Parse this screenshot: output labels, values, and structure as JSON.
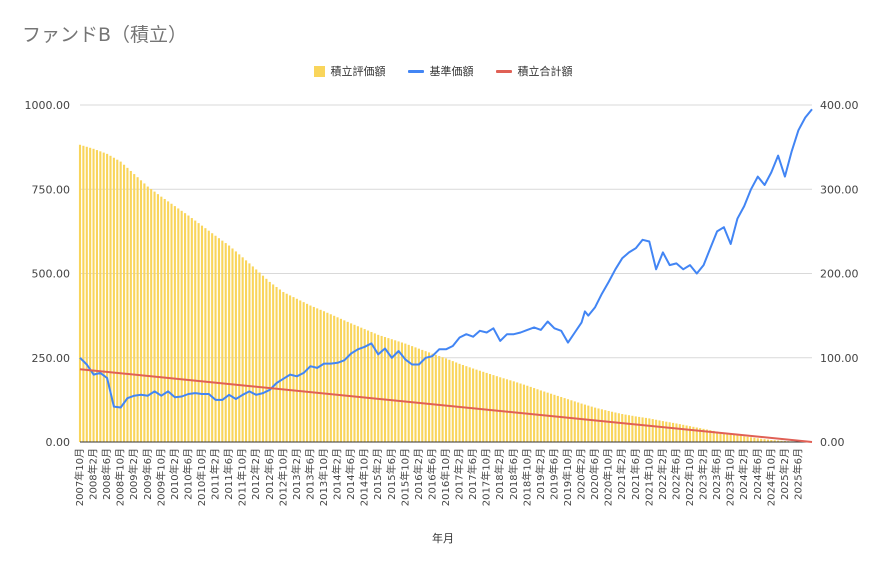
{
  "title": "ファンドB（積立）",
  "colors": {
    "bar": "#f9d55b",
    "base_price": "#4285f4",
    "cumulative": "#e06055",
    "grid": "#d9d9d9"
  },
  "legend": [
    {
      "label": "積立評価額",
      "kind": "bar",
      "color": "#f9d55b"
    },
    {
      "label": "基準価額",
      "kind": "line",
      "color": "#4285f4"
    },
    {
      "label": "積立合計額",
      "kind": "line",
      "color": "#e06055"
    }
  ],
  "chart_data": {
    "type": "bar",
    "title": "ファンドB（積立）",
    "xlabel": "年月",
    "ylabel_left": "",
    "ylabel_right": "",
    "y_left": {
      "lim": [
        0,
        1000
      ],
      "ticks": [
        "0.00",
        "250.00",
        "500.00",
        "750.00",
        "1000.00"
      ],
      "tick_values": [
        0,
        250,
        500,
        750,
        1000
      ]
    },
    "y_right": {
      "lim": [
        0,
        400
      ],
      "ticks": [
        "0.00",
        "100.00",
        "200.00",
        "300.00",
        "400.00"
      ],
      "tick_values": [
        0,
        100,
        200,
        300,
        400
      ]
    },
    "grid": true,
    "legend_position": "top",
    "x_range": [
      "2007-10",
      "2025-10"
    ],
    "x_tick_labels": [
      "2007年10月",
      "2008年2月",
      "2008年6月",
      "2008年10月",
      "2009年2月",
      "2009年6月",
      "2009年10月",
      "2010年2月",
      "2010年6月",
      "2010年10月",
      "2011年2月",
      "2011年6月",
      "2011年10月",
      "2012年2月",
      "2012年6月",
      "2012年10月",
      "2013年2月",
      "2013年6月",
      "2013年10月",
      "2014年2月",
      "2014年6月",
      "2014年10月",
      "2015年2月",
      "2015年6月",
      "2015年10月",
      "2016年2月",
      "2016年6月",
      "2016年10月",
      "2017年2月",
      "2017年6月",
      "2017年10月",
      "2018年2月",
      "2018年6月",
      "2018年10月",
      "2019年2月",
      "2019年6月",
      "2019年10月",
      "2020年2月",
      "2020年6月",
      "2020年10月",
      "2021年2月",
      "2021年6月",
      "2021年10月",
      "2022年2月",
      "2022年6月",
      "2022年10月",
      "2023年2月",
      "2023年6月",
      "2023年10月",
      "2024年2月",
      "2024年6月",
      "2024年10月",
      "2025年2月",
      "2025年6月"
    ],
    "series": [
      {
        "name": "積立評価額",
        "type": "bar",
        "axis": "left",
        "color": "#f9d55b",
        "x": [
          "2007-10",
          "2008-02",
          "2008-06",
          "2008-10",
          "2009-02",
          "2009-06",
          "2009-10",
          "2010-02",
          "2010-06",
          "2010-10",
          "2011-02",
          "2011-06",
          "2011-10",
          "2012-02",
          "2012-06",
          "2012-10",
          "2013-02",
          "2013-06",
          "2013-10",
          "2014-02",
          "2014-06",
          "2014-10",
          "2015-02",
          "2015-06",
          "2015-10",
          "2016-02",
          "2016-06",
          "2016-10",
          "2017-02",
          "2017-06",
          "2017-10",
          "2018-02",
          "2018-06",
          "2018-10",
          "2019-02",
          "2019-06",
          "2019-10",
          "2020-02",
          "2020-06",
          "2020-10",
          "2021-02",
          "2021-06",
          "2021-10",
          "2022-02",
          "2022-06",
          "2022-10",
          "2023-02",
          "2023-06",
          "2023-10",
          "2024-02",
          "2024-06",
          "2024-10",
          "2025-02",
          "2025-06",
          "2025-10"
        ],
        "values": [
          882,
          870,
          855,
          832,
          795,
          758,
          728,
          700,
          672,
          642,
          612,
          583,
          548,
          512,
          475,
          445,
          425,
          405,
          388,
          370,
          352,
          335,
          318,
          305,
          292,
          277,
          262,
          248,
          232,
          218,
          205,
          192,
          180,
          167,
          153,
          140,
          127,
          114,
          102,
          92,
          83,
          76,
          70,
          62,
          55,
          47,
          39,
          31,
          24,
          17,
          11,
          6,
          3,
          1,
          0
        ]
      },
      {
        "name": "基準価額",
        "type": "line",
        "axis": "right",
        "color": "#4285f4",
        "x": [
          "2007-10",
          "2007-12",
          "2008-02",
          "2008-04",
          "2008-06",
          "2008-08",
          "2008-10",
          "2008-12",
          "2009-02",
          "2009-04",
          "2009-06",
          "2009-08",
          "2009-10",
          "2009-12",
          "2010-02",
          "2010-04",
          "2010-06",
          "2010-08",
          "2010-10",
          "2010-12",
          "2011-02",
          "2011-04",
          "2011-06",
          "2011-08",
          "2011-10",
          "2011-12",
          "2012-02",
          "2012-04",
          "2012-06",
          "2012-08",
          "2012-10",
          "2012-12",
          "2013-02",
          "2013-04",
          "2013-06",
          "2013-08",
          "2013-10",
          "2013-12",
          "2014-02",
          "2014-04",
          "2014-06",
          "2014-08",
          "2014-10",
          "2014-12",
          "2015-02",
          "2015-04",
          "2015-06",
          "2015-08",
          "2015-10",
          "2015-12",
          "2016-02",
          "2016-04",
          "2016-06",
          "2016-08",
          "2016-10",
          "2016-12",
          "2017-02",
          "2017-04",
          "2017-06",
          "2017-08",
          "2017-10",
          "2017-12",
          "2018-02",
          "2018-04",
          "2018-06",
          "2018-08",
          "2018-10",
          "2018-12",
          "2019-02",
          "2019-04",
          "2019-06",
          "2019-08",
          "2019-10",
          "2019-12",
          "2020-02",
          "2020-03",
          "2020-04",
          "2020-06",
          "2020-08",
          "2020-10",
          "2020-12",
          "2021-02",
          "2021-04",
          "2021-06",
          "2021-08",
          "2021-10",
          "2021-12",
          "2022-02",
          "2022-04",
          "2022-06",
          "2022-08",
          "2022-10",
          "2022-12",
          "2023-02",
          "2023-04",
          "2023-06",
          "2023-08",
          "2023-10",
          "2023-12",
          "2024-02",
          "2024-04",
          "2024-06",
          "2024-08",
          "2024-10",
          "2024-12",
          "2025-02",
          "2025-04",
          "2025-06",
          "2025-08",
          "2025-10"
        ],
        "values": [
          100,
          92,
          80,
          82,
          76,
          42,
          41,
          52,
          55,
          56,
          55,
          60,
          55,
          60,
          53,
          54,
          57,
          58,
          57,
          57,
          50,
          50,
          56,
          51,
          56,
          60,
          56,
          58,
          62,
          70,
          75,
          80,
          78,
          82,
          90,
          88,
          93,
          93,
          94,
          97,
          105,
          110,
          113,
          117,
          104,
          111,
          100,
          108,
          98,
          92,
          92,
          100,
          102,
          110,
          110,
          114,
          124,
          128,
          125,
          132,
          130,
          135,
          120,
          128,
          128,
          130,
          133,
          136,
          133,
          143,
          135,
          132,
          118,
          130,
          142,
          155,
          150,
          160,
          176,
          190,
          205,
          218,
          225,
          230,
          240,
          238,
          205,
          225,
          210,
          212,
          205,
          210,
          200,
          210,
          230,
          250,
          255,
          235,
          265,
          280,
          300,
          315,
          305,
          320,
          340,
          315,
          345,
          370,
          385,
          395
        ]
      },
      {
        "name": "積立合計額",
        "type": "line",
        "axis": "left",
        "color": "#e06055",
        "x": [
          "2007-10",
          "2025-10"
        ],
        "values": [
          216,
          0
        ]
      }
    ]
  }
}
